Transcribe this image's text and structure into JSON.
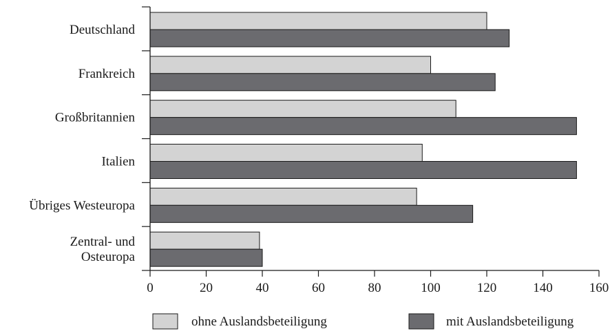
{
  "chart_data": {
    "type": "bar",
    "orientation": "horizontal",
    "categories": [
      "Deutschland",
      "Frankreich",
      "Großbritannien",
      "Italien",
      "Übriges Westeuropa",
      "Zentral- und Osteuropa"
    ],
    "category_lines": [
      [
        "Deutschland"
      ],
      [
        "Frankreich"
      ],
      [
        "Großbritannien"
      ],
      [
        "Italien"
      ],
      [
        "Übriges Westeuropa"
      ],
      [
        "Zentral- und",
        "Osteuropa"
      ]
    ],
    "series": [
      {
        "name": "ohne Auslandsbeteiligung",
        "color": "#d3d3d3",
        "values": [
          120,
          100,
          109,
          97,
          95,
          39
        ]
      },
      {
        "name": "mit Auslandsbeteiligung",
        "color": "#6b6b6f",
        "values": [
          128,
          123,
          152,
          152,
          115,
          40
        ]
      }
    ],
    "xlim": [
      0,
      160
    ],
    "xticks": [
      0,
      20,
      40,
      60,
      80,
      100,
      120,
      140,
      160
    ],
    "title": "",
    "xlabel": "",
    "ylabel": "",
    "grid": false,
    "legend_position": "bottom"
  }
}
